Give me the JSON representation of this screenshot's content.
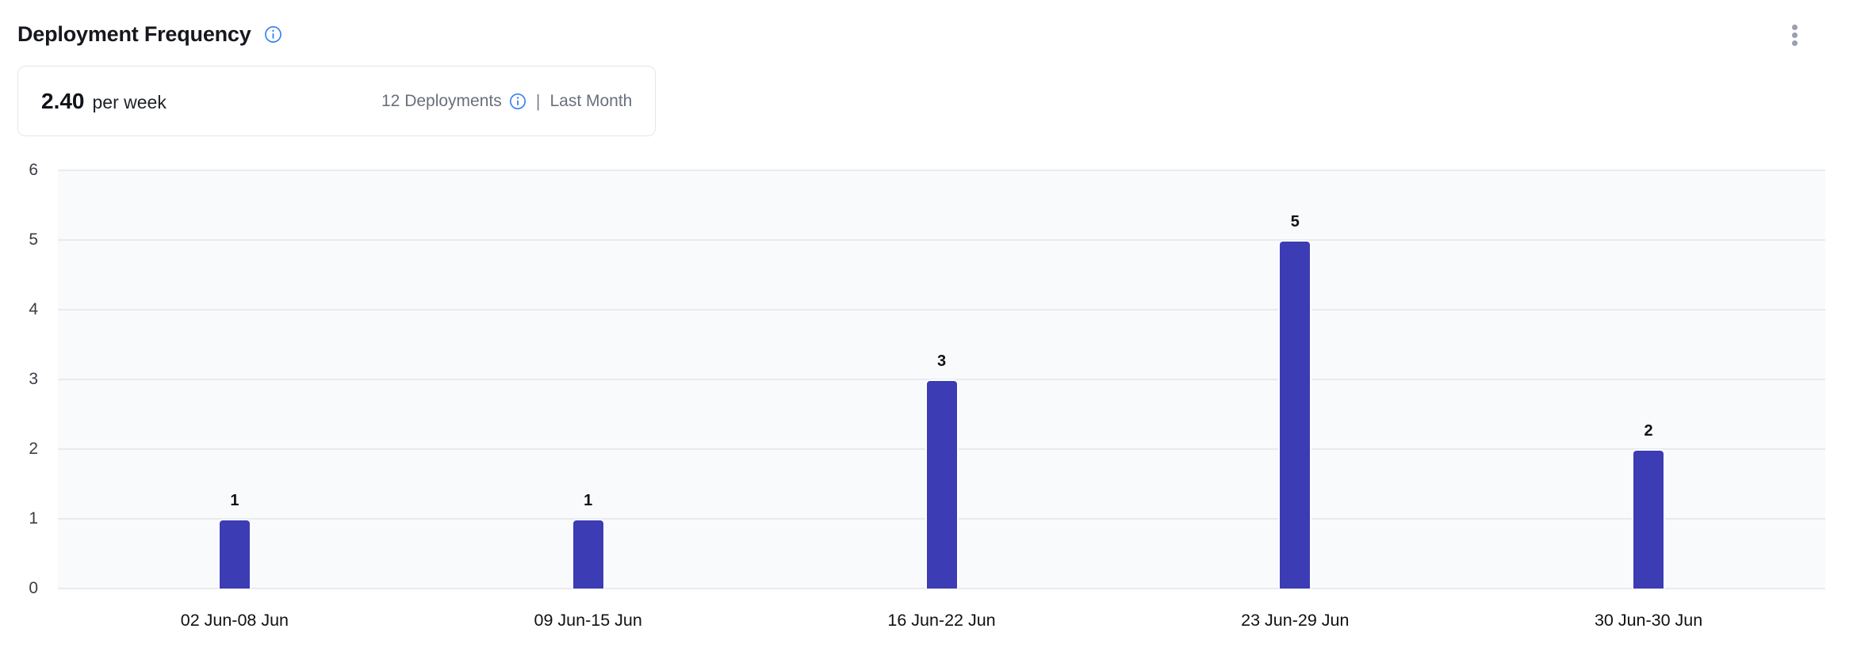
{
  "header": {
    "title": "Deployment Frequency"
  },
  "summary": {
    "rate_value": "2.40",
    "rate_unit": "per week",
    "deployments_label": "12 Deployments",
    "separator": "|",
    "period_label": "Last Month"
  },
  "colors": {
    "bar": "#3c3cb4",
    "plot_background": "#f9fafc",
    "gridline": "#e8eaed",
    "info_icon_blue": "#3b82f6",
    "muted_text": "#69707d",
    "kebab_gray": "#9b9fae"
  },
  "chart_data": {
    "type": "bar",
    "title": "Deployment Frequency",
    "categories": [
      "02 Jun-08 Jun",
      "09 Jun-15 Jun",
      "16 Jun-22 Jun",
      "23 Jun-29 Jun",
      "30 Jun-30 Jun"
    ],
    "values": [
      1,
      1,
      3,
      5,
      2
    ],
    "xlabel": "",
    "ylabel": "",
    "ylim": [
      0,
      6
    ],
    "yticks": [
      0,
      1,
      2,
      3,
      4,
      5,
      6
    ],
    "grid": true,
    "legend": false,
    "value_labels": true
  }
}
